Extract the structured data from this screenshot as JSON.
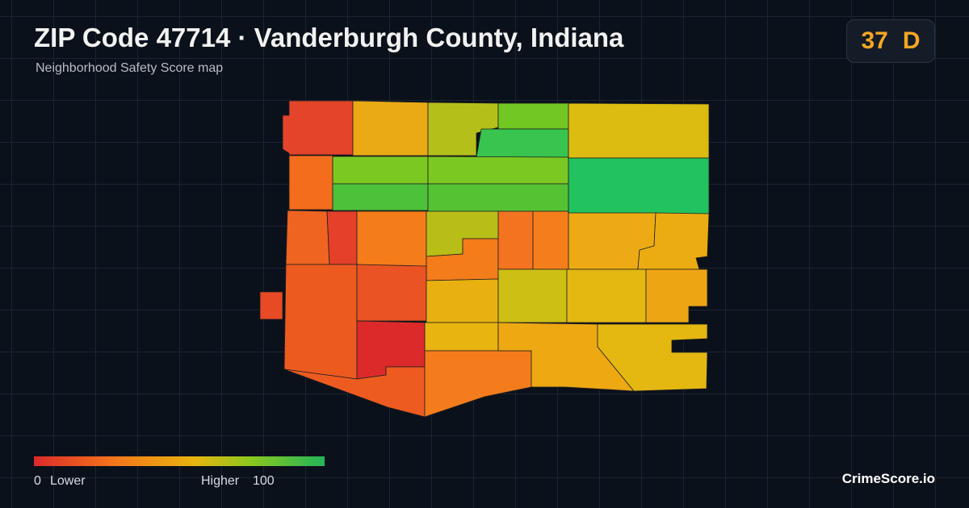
{
  "header": {
    "title": "ZIP Code 47714 · Vanderburgh County, Indiana",
    "subtitle": "Neighborhood Safety Score map"
  },
  "score": {
    "value": 37,
    "grade": "D"
  },
  "legend": {
    "min": 0,
    "min_label": "Lower",
    "max_label": "Higher",
    "max": 100
  },
  "brand": "CrimeScore.io"
}
